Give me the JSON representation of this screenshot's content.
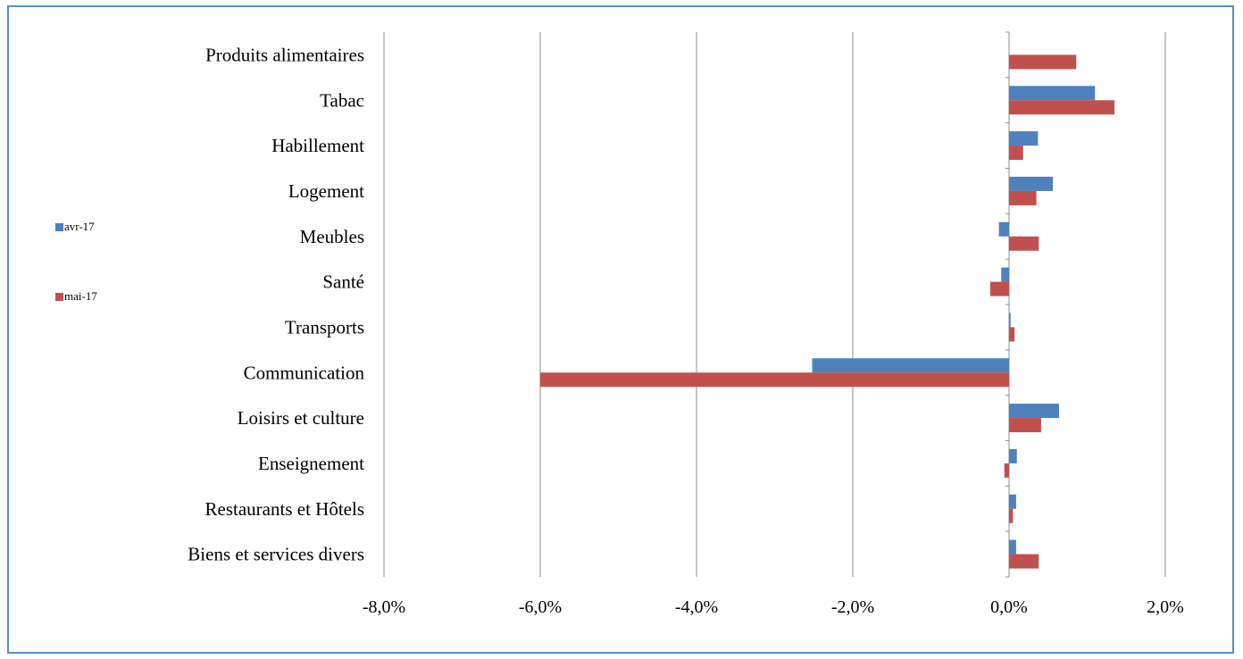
{
  "chart_data": {
    "type": "bar",
    "orientation": "horizontal",
    "title": "",
    "xlabel": "",
    "ylabel": "",
    "xlim": [
      -8.0,
      2.0
    ],
    "x_ticks": [
      -8,
      -6,
      -4,
      -2,
      0,
      2
    ],
    "x_tick_labels": [
      "-8,0%",
      "-6,0%",
      "-4,0%",
      "-2,0%",
      "0,0%",
      "2,0%"
    ],
    "grid": "vertical",
    "legend_position": "left",
    "categories": [
      "Produits alimentaires",
      "Tabac",
      "Habillement",
      "Logement",
      "Meubles",
      "Santé",
      "Transports",
      "Communication",
      "Loisirs et culture",
      "Enseignement",
      "Restaurants et Hôtels",
      "Biens et services divers"
    ],
    "series": [
      {
        "name": "avr-17",
        "color": "#4f81bd",
        "values": [
          0.0,
          1.1,
          0.37,
          0.56,
          -0.13,
          -0.1,
          0.02,
          -2.52,
          0.64,
          0.1,
          0.09,
          0.09
        ]
      },
      {
        "name": "mai-17",
        "color": "#c0504d",
        "values": [
          0.86,
          1.35,
          0.18,
          0.35,
          0.38,
          -0.24,
          0.07,
          -6.0,
          0.41,
          -0.06,
          0.05,
          0.38
        ]
      }
    ]
  }
}
